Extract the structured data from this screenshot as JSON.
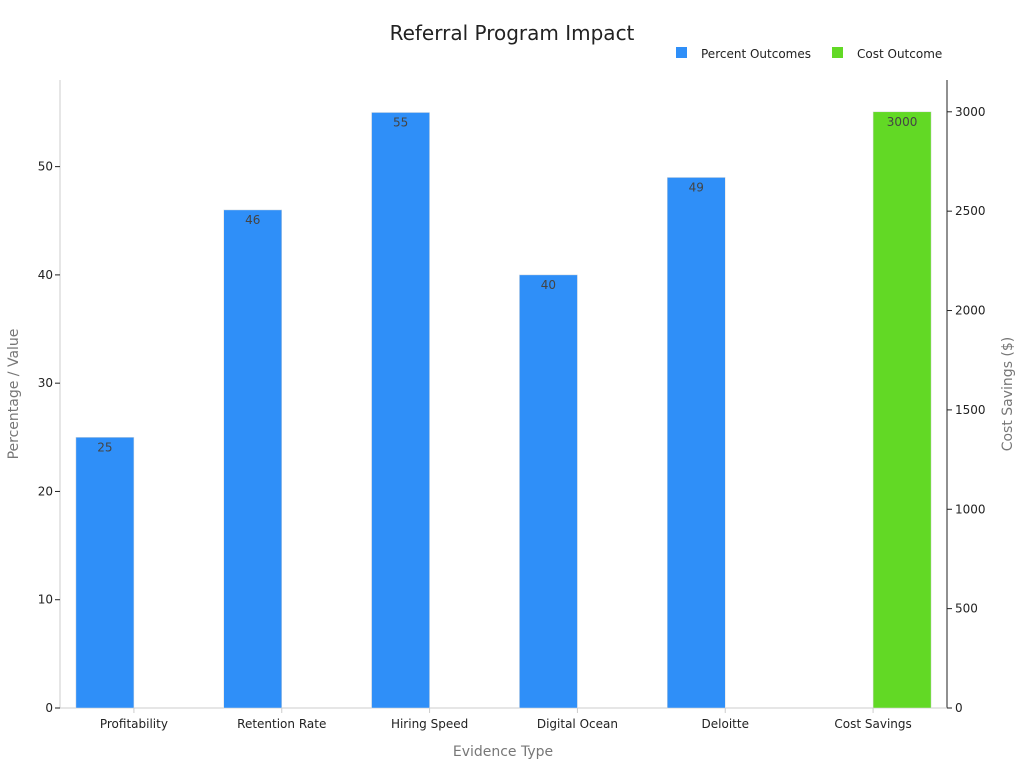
{
  "chart_data": {
    "type": "bar",
    "title": "Referral Program Impact",
    "xlabel": "Evidence Type",
    "ylabel": "Percentage / Value",
    "y2label": "Cost Savings ($)",
    "categories": [
      "Profitability",
      "Retention Rate",
      "Hiring Speed",
      "Digital Ocean",
      "Deloitte",
      "Cost Savings"
    ],
    "series": [
      {
        "name": "Percent Outcomes",
        "axis": "left",
        "color": "#2f8ff8",
        "values": [
          25,
          46,
          55,
          40,
          49,
          null
        ],
        "labels": [
          "25",
          "46",
          "55",
          "40",
          "49",
          ""
        ]
      },
      {
        "name": "Cost Outcome",
        "axis": "right",
        "color": "#62d925",
        "values": [
          null,
          null,
          null,
          null,
          null,
          3000
        ],
        "labels": [
          "",
          "",
          "",
          "",
          "",
          "3000"
        ]
      }
    ],
    "ylim": [
      0,
      58
    ],
    "y2lim": [
      0,
      3160
    ],
    "yticks": [
      0,
      10,
      20,
      30,
      40,
      50
    ],
    "y2ticks": [
      0,
      500,
      1000,
      1500,
      2000,
      2500,
      3000
    ],
    "grid": false,
    "legend": "top-right"
  }
}
